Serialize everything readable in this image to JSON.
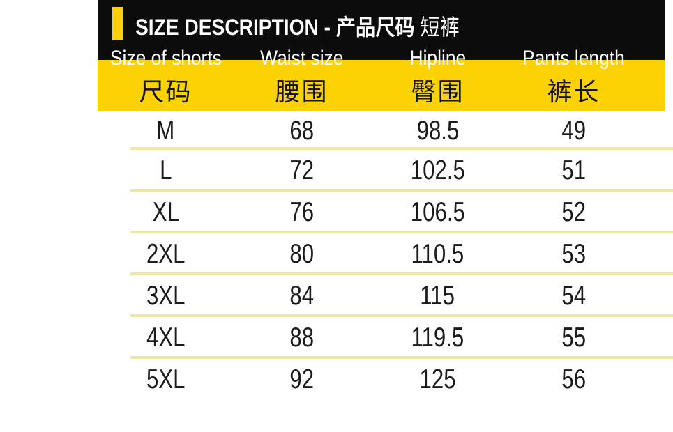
{
  "header": {
    "title_main": "SIZE DESCRIPTION - 产品尺码",
    "title_suffix": "短裤"
  },
  "colors": {
    "band_yellow": "#fcd205",
    "accent_yellow": "#fcd205",
    "header_black": "#0c0c0c",
    "divider_pale_yellow": "#ece8a0",
    "header_text_white": "#ffffff",
    "body_text_black": "#1b1b1b"
  },
  "chart_data": {
    "type": "table",
    "title": "SIZE DESCRIPTION - 产品尺码 短裤",
    "columns": [
      {
        "en": "Size of shorts",
        "cn": "尺码"
      },
      {
        "en": "Waist size",
        "cn": "腰围"
      },
      {
        "en": "Hipline",
        "cn": "臀围"
      },
      {
        "en": "Pants length",
        "cn": "裤长"
      }
    ],
    "rows": [
      [
        "M",
        "68",
        "98.5",
        "49"
      ],
      [
        "L",
        "72",
        "102.5",
        "51"
      ],
      [
        "XL",
        "76",
        "106.5",
        "52"
      ],
      [
        "2XL",
        "80",
        "110.5",
        "53"
      ],
      [
        "3XL",
        "84",
        "115",
        "54"
      ],
      [
        "4XL",
        "88",
        "119.5",
        "55"
      ],
      [
        "5XL",
        "92",
        "125",
        "56"
      ]
    ]
  }
}
